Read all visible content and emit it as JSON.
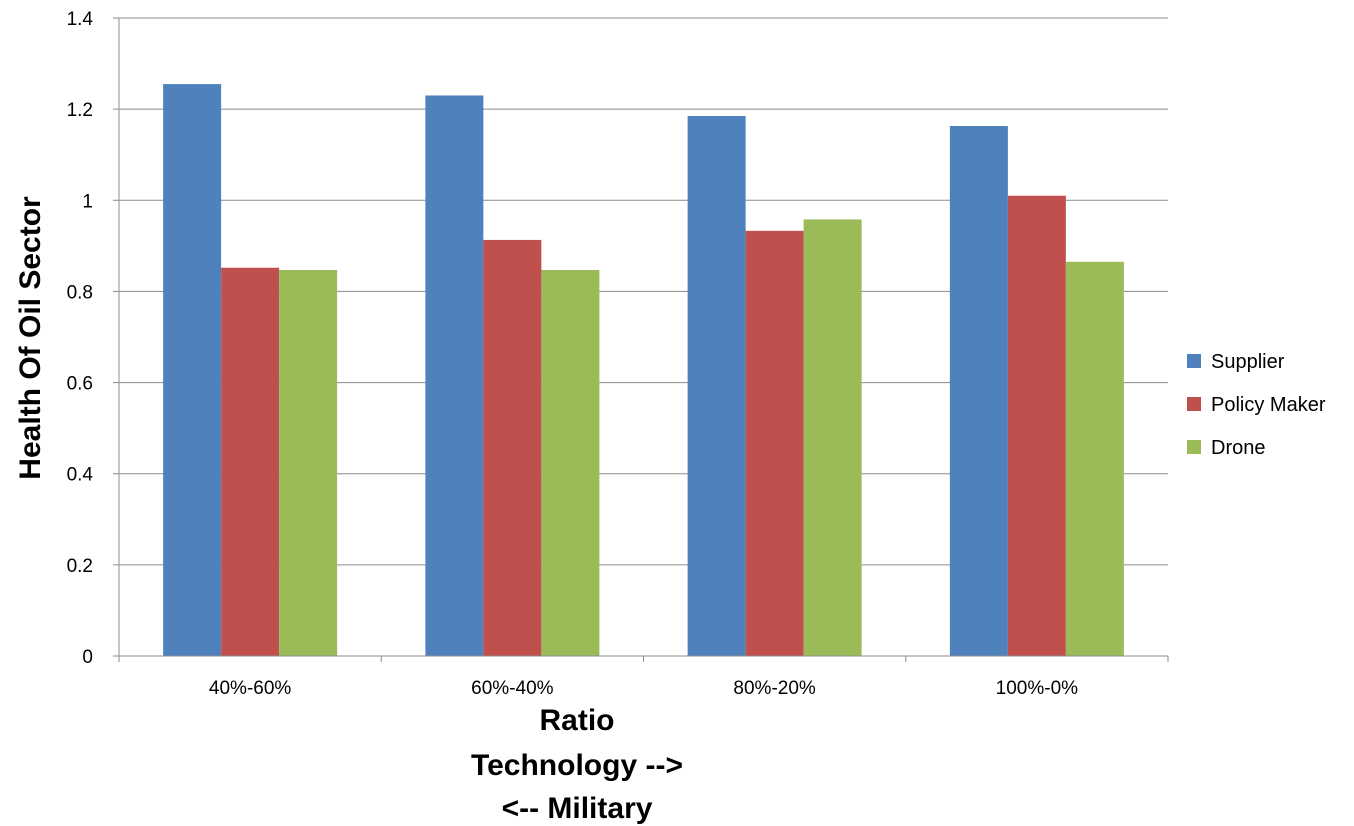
{
  "chart_data": {
    "type": "bar",
    "title": "",
    "xlabel_lines": [
      "Ratio",
      "Technology -->",
      "<-- Military"
    ],
    "ylabel": "Health Of Oil Sector",
    "categories": [
      "40%-60%",
      "60%-40%",
      "80%-20%",
      "100%-0%"
    ],
    "series": [
      {
        "name": "Supplier",
        "color": "#4F81BD",
        "values": [
          1.255,
          1.23,
          1.185,
          1.163
        ]
      },
      {
        "name": "Policy Maker",
        "color": "#C0504D",
        "values": [
          0.852,
          0.913,
          0.933,
          1.01
        ]
      },
      {
        "name": "Drone",
        "color": "#9BBB59",
        "values": [
          0.847,
          0.847,
          0.958,
          0.865
        ]
      }
    ],
    "ylim": [
      0,
      1.4
    ],
    "yticks": [
      "0",
      "0.2",
      "0.4",
      "0.6",
      "0.8",
      "1",
      "1.2",
      "1.4"
    ],
    "grid": true,
    "legend_position": "right"
  }
}
